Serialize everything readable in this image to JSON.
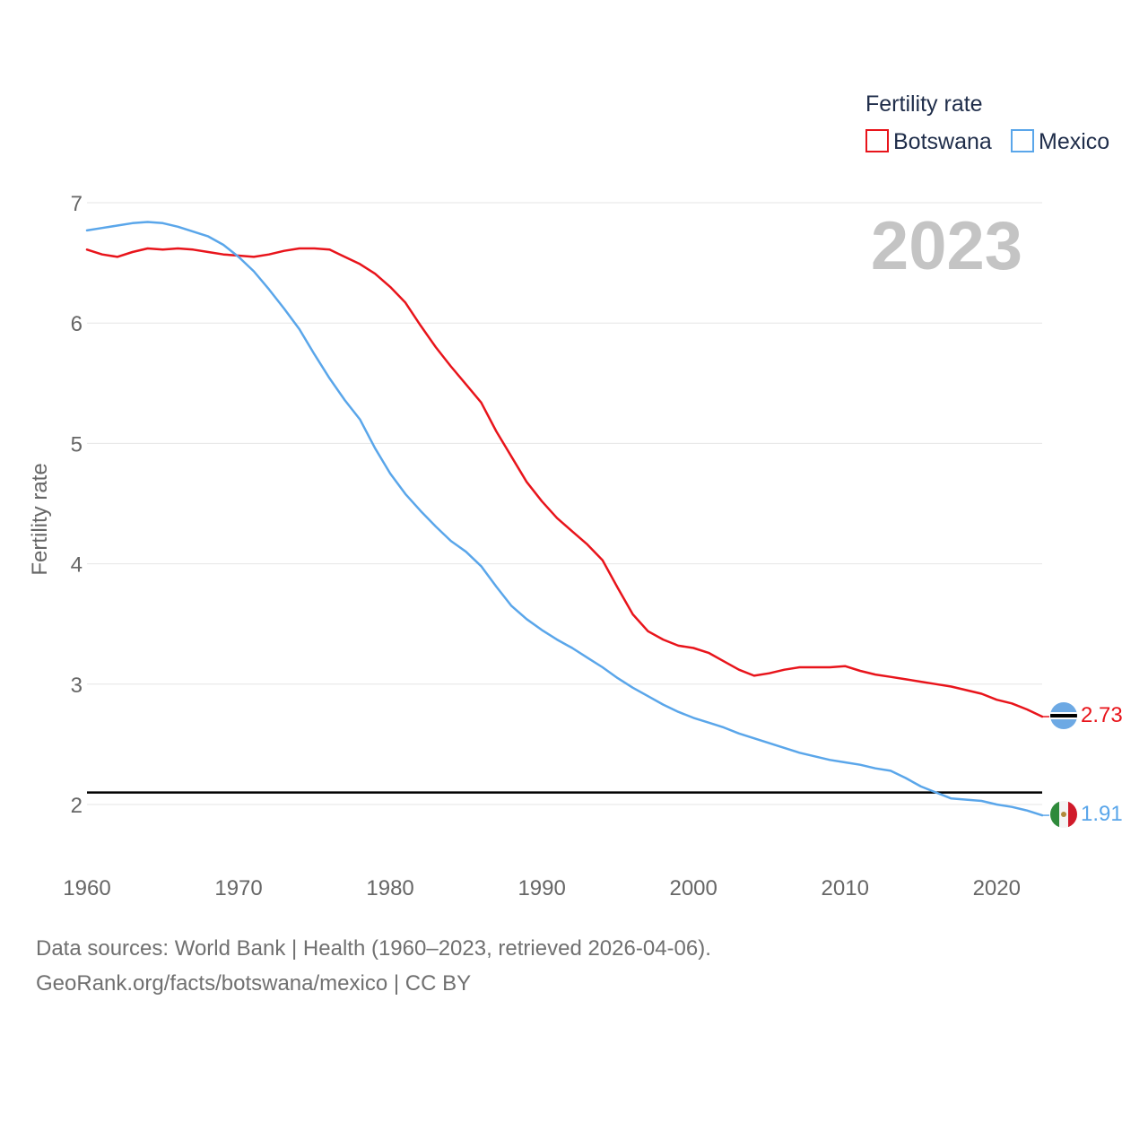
{
  "chart_data": {
    "type": "line",
    "title": "Fertility rate",
    "ylabel": "Fertility rate",
    "xlabel": "",
    "year_label": "2023",
    "xlim": [
      1960,
      2023
    ],
    "ylim": [
      1.6,
      7.1
    ],
    "x_ticks": [
      1960,
      1970,
      1980,
      1990,
      2000,
      2010,
      2020
    ],
    "y_ticks": [
      2,
      3,
      4,
      5,
      6,
      7
    ],
    "grid": true,
    "legend_position": "top-right",
    "reference_line": {
      "y": 2.1
    },
    "x": [
      1960,
      1961,
      1962,
      1963,
      1964,
      1965,
      1966,
      1967,
      1968,
      1969,
      1970,
      1971,
      1972,
      1973,
      1974,
      1975,
      1976,
      1977,
      1978,
      1979,
      1980,
      1981,
      1982,
      1983,
      1984,
      1985,
      1986,
      1987,
      1988,
      1989,
      1990,
      1991,
      1992,
      1993,
      1994,
      1995,
      1996,
      1997,
      1998,
      1999,
      2000,
      2001,
      2002,
      2003,
      2004,
      2005,
      2006,
      2007,
      2008,
      2009,
      2010,
      2011,
      2012,
      2013,
      2014,
      2015,
      2016,
      2017,
      2018,
      2019,
      2020,
      2021,
      2022,
      2023
    ],
    "series": [
      {
        "name": "Botswana",
        "color": "#e8141b",
        "end_label": "2.73",
        "values": [
          6.61,
          6.57,
          6.55,
          6.59,
          6.62,
          6.61,
          6.62,
          6.61,
          6.59,
          6.57,
          6.56,
          6.55,
          6.57,
          6.6,
          6.62,
          6.62,
          6.61,
          6.55,
          6.49,
          6.41,
          6.3,
          6.17,
          5.98,
          5.8,
          5.64,
          5.49,
          5.34,
          5.1,
          4.89,
          4.68,
          4.52,
          4.38,
          4.27,
          4.16,
          4.03,
          3.8,
          3.58,
          3.44,
          3.37,
          3.32,
          3.3,
          3.26,
          3.19,
          3.12,
          3.07,
          3.09,
          3.12,
          3.14,
          3.14,
          3.14,
          3.15,
          3.11,
          3.08,
          3.06,
          3.04,
          3.02,
          3.0,
          2.98,
          2.95,
          2.92,
          2.87,
          2.84,
          2.79,
          2.73
        ]
      },
      {
        "name": "Mexico",
        "color": "#5aa6ea",
        "end_label": "1.91",
        "values": [
          6.77,
          6.79,
          6.81,
          6.83,
          6.84,
          6.83,
          6.8,
          6.76,
          6.72,
          6.65,
          6.55,
          6.43,
          6.28,
          6.12,
          5.95,
          5.74,
          5.54,
          5.36,
          5.2,
          4.96,
          4.75,
          4.58,
          4.44,
          4.31,
          4.19,
          4.1,
          3.98,
          3.81,
          3.65,
          3.54,
          3.45,
          3.37,
          3.3,
          3.22,
          3.14,
          3.05,
          2.97,
          2.9,
          2.83,
          2.77,
          2.72,
          2.68,
          2.64,
          2.59,
          2.55,
          2.51,
          2.47,
          2.43,
          2.4,
          2.37,
          2.35,
          2.33,
          2.3,
          2.28,
          2.22,
          2.15,
          2.1,
          2.05,
          2.04,
          2.03,
          2.0,
          1.98,
          1.95,
          1.91
        ]
      }
    ]
  },
  "source": {
    "line1": "Data sources: World Bank | Health (1960–2023, retrieved 2026-04-06).",
    "line2": "GeoRank.org/facts/botswana/mexico | CC BY"
  }
}
